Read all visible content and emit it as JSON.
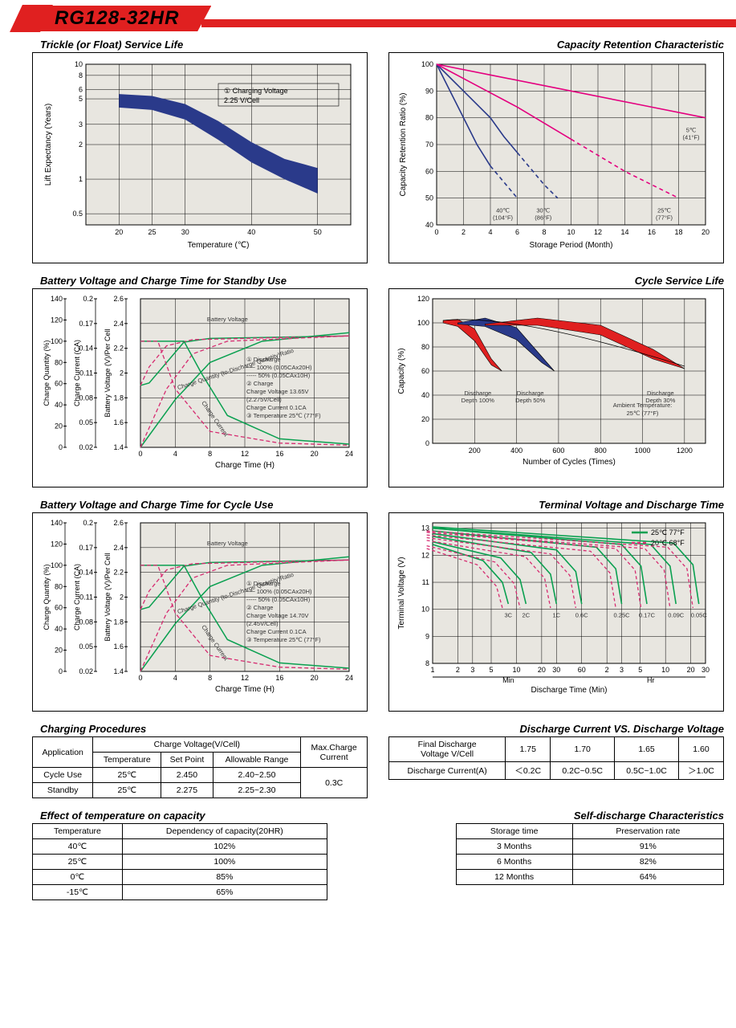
{
  "header": {
    "model": "RG128-32HR"
  },
  "colors": {
    "band": "#2a3a8a",
    "magenta": "#e4007f",
    "blue": "#2a3a8a",
    "red": "#e02020",
    "green": "#0aa050",
    "dash_red": "#d62b70",
    "plot_bg": "#e8e6e0"
  },
  "chart_trickle": {
    "title": "Trickle (or Float) Service Life",
    "xlabel": "Temperature (℃)",
    "ylabel": "Lift  Expectancy (Years)",
    "xticks": [
      20,
      25,
      30,
      40,
      50
    ],
    "yticks": [
      0.5,
      1,
      2,
      3,
      5,
      6,
      8,
      10
    ],
    "legend": "① Charging Voltage\n   2.25 V/Cell",
    "band_upper": [
      [
        20,
        5.5
      ],
      [
        25,
        5.3
      ],
      [
        30,
        4.5
      ],
      [
        35,
        3.2
      ],
      [
        40,
        2.1
      ],
      [
        45,
        1.5
      ],
      [
        50,
        1.25
      ]
    ],
    "band_lower": [
      [
        20,
        4.2
      ],
      [
        25,
        4.0
      ],
      [
        30,
        3.3
      ],
      [
        35,
        2.2
      ],
      [
        40,
        1.4
      ],
      [
        45,
        1.0
      ],
      [
        50,
        0.75
      ]
    ],
    "band_color": "#2a3a8a"
  },
  "chart_capacity_retention": {
    "title": "Capacity Retention Characteristic",
    "xlabel": "Storage Period (Month)",
    "ylabel": "Capacity Retention Ratio (%)",
    "xticks": [
      0,
      2,
      4,
      6,
      8,
      10,
      12,
      14,
      16,
      18,
      20
    ],
    "yticks": [
      40,
      50,
      60,
      70,
      80,
      90,
      100
    ],
    "curves": [
      {
        "label": "40℃\n(104°F)",
        "color": "#2a3a8a",
        "pts": [
          [
            0,
            100
          ],
          [
            1,
            90
          ],
          [
            2,
            80
          ],
          [
            3,
            70
          ],
          [
            4,
            62
          ],
          [
            5,
            56
          ],
          [
            6,
            50
          ]
        ],
        "dash_from": 4
      },
      {
        "label": "30℃\n(86°F)",
        "color": "#2a3a8a",
        "pts": [
          [
            0,
            100
          ],
          [
            2,
            90
          ],
          [
            4,
            80
          ],
          [
            5,
            73
          ],
          [
            6,
            67
          ],
          [
            7,
            61
          ],
          [
            8,
            55
          ],
          [
            9,
            50
          ]
        ],
        "dash_from": 6
      },
      {
        "label": "25℃\n(77°F)",
        "color": "#e4007f",
        "pts": [
          [
            0,
            100
          ],
          [
            3,
            92
          ],
          [
            6,
            84
          ],
          [
            8,
            78
          ],
          [
            10,
            72
          ],
          [
            12,
            66
          ],
          [
            14,
            60
          ],
          [
            16,
            55
          ],
          [
            18,
            50
          ]
        ],
        "dash_from": 10
      },
      {
        "label": "5℃\n(41°F)",
        "color": "#e4007f",
        "pts": [
          [
            0,
            100
          ],
          [
            5,
            95
          ],
          [
            10,
            90
          ],
          [
            15,
            85
          ],
          [
            20,
            80
          ]
        ],
        "dash_from": 99
      }
    ]
  },
  "chart_standby": {
    "title": "Battery Voltage and Charge Time for Standby Use",
    "xlabel": "Charge Time (H)",
    "y1": {
      "label": "Charge Quantity (%)",
      "ticks": [
        0,
        20,
        40,
        60,
        80,
        100,
        120,
        140
      ]
    },
    "y2": {
      "label": "Charge Current (CA)",
      "ticks": [
        0.02,
        0.05,
        0.08,
        0.11,
        0.14,
        0.17,
        0.2
      ]
    },
    "y3": {
      "label": "Battery Voltage (V)/Per Cell",
      "ticks": [
        1.4,
        1.6,
        1.8,
        2.0,
        2.2,
        2.4,
        2.6
      ]
    },
    "xticks": [
      0,
      4,
      8,
      12,
      16,
      20,
      24
    ],
    "notes": [
      "① Discharge",
      "── 100% (0.05CAx20H)",
      "----- 50%  (0.05CAx10H)",
      "② Charge",
      "Charge Voltage 13.65V",
      "(2.275V/Cell)",
      "Charge Current 0.1CA",
      "③ Temperature 25℃ (77°F)"
    ],
    "labels": {
      "bv": "Battery Voltage",
      "cq": "Charge Quantity (to-Discharge Quantity)Ratio",
      "cc": "Charge Current"
    }
  },
  "chart_cycle_life": {
    "title": "Cycle Service Life",
    "xlabel": "Number of Cycles (Times)",
    "ylabel": "Capacity (%)",
    "xticks": [
      200,
      400,
      600,
      800,
      1000,
      1200
    ],
    "yticks": [
      0,
      20,
      40,
      60,
      80,
      100,
      120
    ],
    "wedges": [
      {
        "label": "Discharge\nDepth 100%",
        "color": "#e02020",
        "poly": [
          [
            50,
            102
          ],
          [
            120,
            103
          ],
          [
            200,
            95
          ],
          [
            280,
            70
          ],
          [
            330,
            60
          ],
          [
            280,
            65
          ],
          [
            200,
            85
          ],
          [
            120,
            97
          ],
          [
            50,
            100
          ]
        ]
      },
      {
        "label": "Discharge\nDepth 50%",
        "color": "#2a3a8a",
        "poly": [
          [
            120,
            100
          ],
          [
            250,
            104
          ],
          [
            400,
            96
          ],
          [
            520,
            72
          ],
          [
            580,
            60
          ],
          [
            520,
            67
          ],
          [
            400,
            86
          ],
          [
            250,
            97
          ],
          [
            120,
            99
          ]
        ]
      },
      {
        "label": "Discharge\nDepth 30%",
        "color": "#e02020",
        "poly": [
          [
            250,
            99
          ],
          [
            500,
            104
          ],
          [
            800,
            98
          ],
          [
            1050,
            78
          ],
          [
            1200,
            62
          ],
          [
            1050,
            70
          ],
          [
            800,
            90
          ],
          [
            500,
            98
          ],
          [
            250,
            98
          ]
        ]
      }
    ],
    "ambient": "Ambient Temperature:\n25℃  (77°F)"
  },
  "chart_cycle": {
    "title": "Battery Voltage and Charge Time for Cycle Use",
    "xlabel": "Charge Time (H)",
    "notes": [
      "① Discharge",
      "── 100% (0.05CAx20H)",
      "----- 50%  (0.05CAx10H)",
      "② Charge",
      "Charge Voltage 14.70V",
      "(2.45V/Cell)",
      "Charge Current 0.1CA",
      "③ Temperature 25℃ (77°F)"
    ]
  },
  "chart_terminal": {
    "title": "Terminal Voltage and Discharge Time",
    "xlabel": "Discharge Time (Min)",
    "ylabel": "Terminal Voltage (V)",
    "yticks": [
      8,
      9,
      10,
      11,
      12,
      13
    ],
    "legend": [
      {
        "txt": "25℃ 77°F",
        "color": "#0aa050",
        "dash": false
      },
      {
        "txt": "20℃ 68°F",
        "color": "#d62b70",
        "dash": true
      }
    ],
    "xlabels": [
      "1",
      "2",
      "3",
      "5",
      "10",
      "20",
      "30",
      "60",
      "2",
      "3",
      "5",
      "10",
      "20",
      "30"
    ],
    "sections": [
      "Min",
      "Hr"
    ],
    "c_labels": [
      "3C",
      "2C",
      "1C",
      "0.6C",
      "0.25C",
      "0.17C",
      "0.09C",
      "0.05C"
    ]
  },
  "tbl_charging": {
    "title": "Charging Procedures",
    "hdr1": "Application",
    "hdr2": "Charge Voltage(V/Cell)",
    "hdr3": "Max.Charge\nCurrent",
    "sub": [
      "Temperature",
      "Set Point",
      "Allowable Range"
    ],
    "rows": [
      [
        "Cycle Use",
        "25℃",
        "2.450",
        "2.40~2.50"
      ],
      [
        "Standby",
        "25℃",
        "2.275",
        "2.25~2.30"
      ]
    ],
    "max": "0.3C"
  },
  "tbl_discharge": {
    "title": "Discharge Current VS. Discharge Voltage",
    "h1": "Final Discharge\nVoltage V/Cell",
    "vals": [
      "1.75",
      "1.70",
      "1.65",
      "1.60"
    ],
    "h2": "Discharge Current(A)",
    "cur": [
      "＜0.2C",
      "0.2C~0.5C",
      "0.5C~1.0C",
      "＞1.0C"
    ]
  },
  "tbl_temp": {
    "title": "Effect of temperature on capacity",
    "hdr": [
      "Temperature",
      "Dependency of capacity(20HR)"
    ],
    "rows": [
      [
        "40℃",
        "102%"
      ],
      [
        "25℃",
        "100%"
      ],
      [
        "0℃",
        "85%"
      ],
      [
        "-15℃",
        "65%"
      ]
    ]
  },
  "tbl_self": {
    "title": "Self-discharge Characteristics",
    "hdr": [
      "Storage time",
      "Preservation rate"
    ],
    "rows": [
      [
        "3 Months",
        "91%"
      ],
      [
        "6 Months",
        "82%"
      ],
      [
        "12 Months",
        "64%"
      ]
    ]
  }
}
